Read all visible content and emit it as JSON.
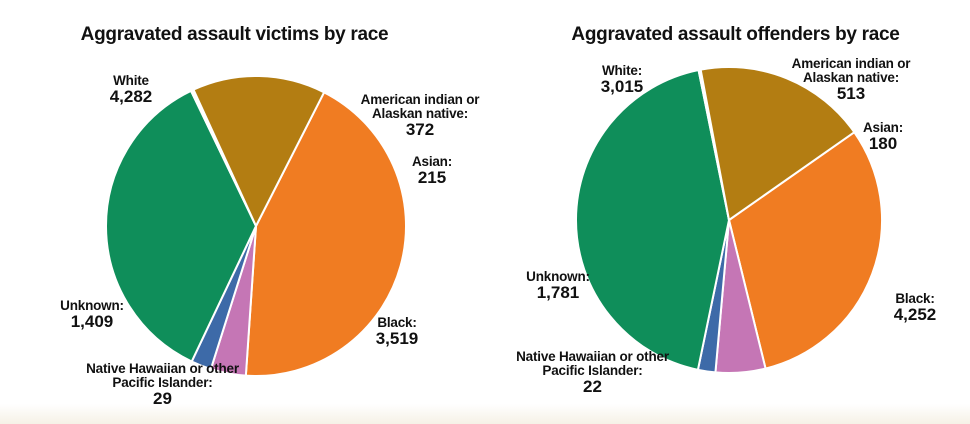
{
  "chart_data": [
    {
      "type": "pie",
      "title": "Aggravated assault victims by race",
      "slices": [
        {
          "label": "White",
          "value": 4282,
          "display": "4,282",
          "color": "#f07c22"
        },
        {
          "label": "American indian or Alaskan native:",
          "value": 372,
          "display": "372",
          "color": "#c576b5"
        },
        {
          "label": "Asian:",
          "value": 215,
          "display": "215",
          "color": "#3d6aa8"
        },
        {
          "label": "Black:",
          "value": 3519,
          "display": "3,519",
          "color": "#0f8e5a"
        },
        {
          "label": "Native Hawaiian or other Pacific Islander:",
          "value": 29,
          "display": "29",
          "color": "#ffffff"
        },
        {
          "label": "Unknown:",
          "value": 1409,
          "display": "1,409",
          "color": "#b37d12"
        }
      ]
    },
    {
      "type": "pie",
      "title": "Aggravated assault offenders by race",
      "slices": [
        {
          "label": "White:",
          "value": 3015,
          "display": "3,015",
          "color": "#f07c22"
        },
        {
          "label": "American indian or Alaskan native:",
          "value": 513,
          "display": "513",
          "color": "#c576b5"
        },
        {
          "label": "Asian:",
          "value": 180,
          "display": "180",
          "color": "#3d6aa8"
        },
        {
          "label": "Black:",
          "value": 4252,
          "display": "4,252",
          "color": "#0f8e5a"
        },
        {
          "label": "Native Hawaiian or other Pacific Islander:",
          "value": 22,
          "display": "22",
          "color": "#ffffff"
        },
        {
          "label": "Unknown:",
          "value": 1781,
          "display": "1,781",
          "color": "#b37d12"
        }
      ]
    }
  ]
}
